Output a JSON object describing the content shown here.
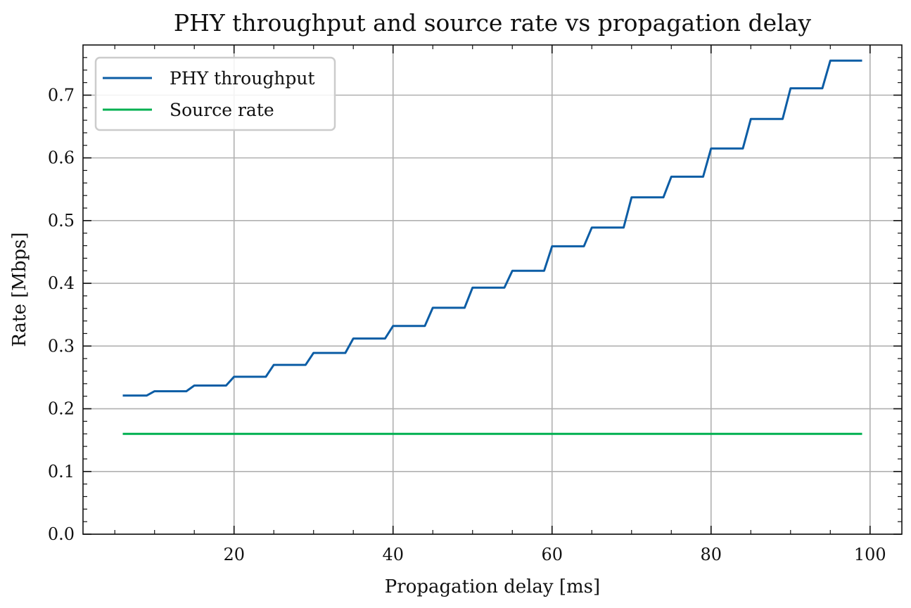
{
  "chart_data": {
    "type": "line",
    "title": "PHY throughput and source rate vs propagation delay",
    "xlabel": "Propagation delay [ms]",
    "ylabel": "Rate [Mbps]",
    "xlim": [
      1,
      104
    ],
    "ylim": [
      0,
      0.78
    ],
    "xticks": [
      20,
      40,
      60,
      80,
      100
    ],
    "yticks": [
      0.0,
      0.1,
      0.2,
      0.3,
      0.4,
      0.5,
      0.6,
      0.7
    ],
    "grid": true,
    "legend_position": "top-left",
    "series": [
      {
        "name": "PHY throughput",
        "color": "#0c5da5",
        "x": [
          6,
          9,
          10,
          14,
          15,
          19,
          20,
          24,
          25,
          29,
          30,
          34,
          35,
          39,
          40,
          44,
          45,
          49,
          50,
          54,
          55,
          59,
          60,
          64,
          65,
          69,
          70,
          74,
          75,
          79,
          80,
          84,
          85,
          89,
          90,
          94,
          95,
          99
        ],
        "y": [
          0.221,
          0.221,
          0.228,
          0.228,
          0.237,
          0.237,
          0.251,
          0.251,
          0.27,
          0.27,
          0.289,
          0.289,
          0.312,
          0.312,
          0.332,
          0.332,
          0.361,
          0.361,
          0.393,
          0.393,
          0.42,
          0.42,
          0.459,
          0.459,
          0.489,
          0.489,
          0.537,
          0.537,
          0.57,
          0.57,
          0.615,
          0.615,
          0.662,
          0.662,
          0.711,
          0.711,
          0.755,
          0.755
        ]
      },
      {
        "name": "Source rate",
        "color": "#00b050",
        "x": [
          6,
          99
        ],
        "y": [
          0.16,
          0.16
        ]
      }
    ]
  }
}
